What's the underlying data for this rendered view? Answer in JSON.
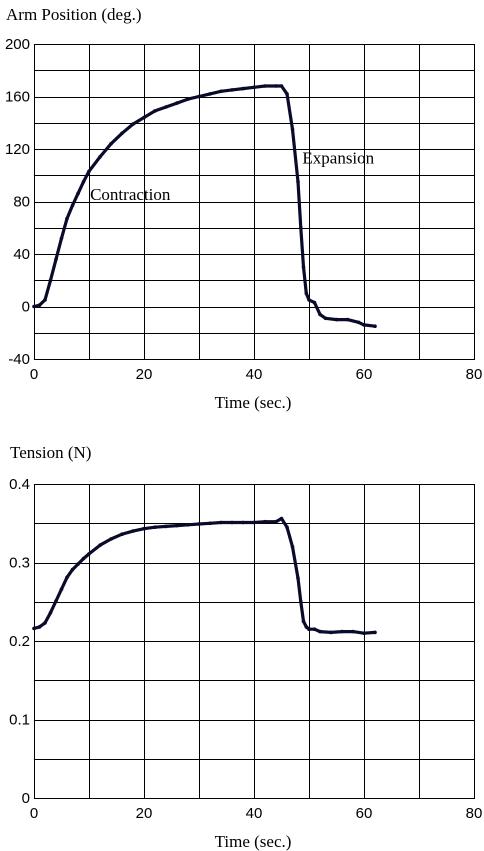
{
  "chart_data": [
    {
      "type": "line",
      "title": "Arm Position (deg.)",
      "xlabel": "Time (sec.)",
      "ylabel": "",
      "xlim": [
        0,
        80
      ],
      "ylim": [
        -40,
        200
      ],
      "x_major_ticks": [
        0,
        20,
        40,
        60,
        80
      ],
      "y_major_ticks": [
        -40,
        0,
        40,
        80,
        120,
        160,
        200
      ],
      "x_tick_labels": [
        "0",
        "20",
        "40",
        "60",
        "80"
      ],
      "y_tick_labels": [
        "-40",
        "0",
        "40",
        "80",
        "120",
        "160",
        "200"
      ],
      "x_grid_step": 10,
      "y_grid_step": 20,
      "grid": true,
      "line_color": "#0a0a2a",
      "annotations": [
        {
          "text": "Contraction",
          "x": 10.2,
          "y": 81
        },
        {
          "text": "Expansion",
          "x": 48.8,
          "y": 109
        }
      ],
      "series": [
        {
          "points": [
            [
              0,
              0
            ],
            [
              1,
              1
            ],
            [
              2,
              5
            ],
            [
              3,
              20
            ],
            [
              4,
              36
            ],
            [
              5,
              52
            ],
            [
              6,
              67
            ],
            [
              7,
              77
            ],
            [
              8,
              86
            ],
            [
              9,
              95
            ],
            [
              10,
              103
            ],
            [
              12,
              114
            ],
            [
              14,
              124
            ],
            [
              16,
              132
            ],
            [
              18,
              139
            ],
            [
              20,
              144
            ],
            [
              22,
              149
            ],
            [
              24,
              152
            ],
            [
              26,
              155
            ],
            [
              28,
              158
            ],
            [
              30,
              160
            ],
            [
              32,
              162
            ],
            [
              34,
              164
            ],
            [
              36,
              165
            ],
            [
              38,
              166
            ],
            [
              40,
              167
            ],
            [
              42,
              168
            ],
            [
              44,
              168
            ],
            [
              45,
              168
            ],
            [
              46,
              162
            ],
            [
              47,
              135
            ],
            [
              48,
              95
            ],
            [
              48.5,
              60
            ],
            [
              49,
              30
            ],
            [
              49.5,
              10
            ],
            [
              50,
              5
            ],
            [
              51,
              3
            ],
            [
              52,
              -6
            ],
            [
              53,
              -9
            ],
            [
              55,
              -10
            ],
            [
              57,
              -10
            ],
            [
              59,
              -12
            ],
            [
              60,
              -14
            ],
            [
              62,
              -15
            ]
          ]
        }
      ]
    },
    {
      "type": "line",
      "title": "Tension (N)",
      "xlabel": "Time (sec.)",
      "ylabel": "",
      "xlim": [
        0,
        80
      ],
      "ylim": [
        0,
        0.4
      ],
      "x_major_ticks": [
        0,
        20,
        40,
        60,
        80
      ],
      "y_major_ticks": [
        0,
        0.1,
        0.2,
        0.3,
        0.4
      ],
      "x_tick_labels": [
        "0",
        "20",
        "40",
        "60",
        "80"
      ],
      "y_tick_labels": [
        "0",
        "0.1",
        "0.2",
        "0.3",
        "0.4"
      ],
      "x_grid_step": 10,
      "y_grid_step": 0.05,
      "grid": true,
      "line_color": "#0a0a2a",
      "annotations": [],
      "series": [
        {
          "points": [
            [
              0,
              0.216
            ],
            [
              1,
              0.218
            ],
            [
              2,
              0.223
            ],
            [
              3,
              0.236
            ],
            [
              4,
              0.251
            ],
            [
              5,
              0.266
            ],
            [
              6,
              0.281
            ],
            [
              7,
              0.291
            ],
            [
              8,
              0.298
            ],
            [
              9,
              0.305
            ],
            [
              10,
              0.311
            ],
            [
              12,
              0.322
            ],
            [
              14,
              0.33
            ],
            [
              16,
              0.336
            ],
            [
              18,
              0.34
            ],
            [
              20,
              0.343
            ],
            [
              22,
              0.345
            ],
            [
              24,
              0.346
            ],
            [
              26,
              0.347
            ],
            [
              28,
              0.348
            ],
            [
              30,
              0.349
            ],
            [
              32,
              0.35
            ],
            [
              34,
              0.351
            ],
            [
              36,
              0.351
            ],
            [
              38,
              0.351
            ],
            [
              40,
              0.351
            ],
            [
              42,
              0.352
            ],
            [
              44,
              0.352
            ],
            [
              45,
              0.356
            ],
            [
              46,
              0.345
            ],
            [
              47,
              0.32
            ],
            [
              48,
              0.28
            ],
            [
              48.5,
              0.25
            ],
            [
              49,
              0.225
            ],
            [
              49.5,
              0.218
            ],
            [
              50,
              0.215
            ],
            [
              51,
              0.215
            ],
            [
              52,
              0.212
            ],
            [
              54,
              0.211
            ],
            [
              56,
              0.212
            ],
            [
              58,
              0.212
            ],
            [
              60,
              0.21
            ],
            [
              62,
              0.211
            ]
          ]
        }
      ]
    }
  ]
}
